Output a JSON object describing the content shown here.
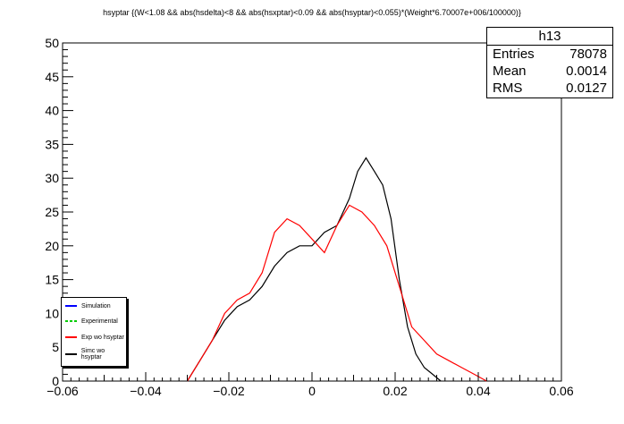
{
  "title": "hsyptar {(W<1.08 && abs(hsdelta)<8 && abs(hsxptar)<0.09 && abs(hsyptar)<0.055)*(Weight*6.70007e+006/100000)}",
  "stats": {
    "name": "h13",
    "rows": [
      {
        "label": "Entries",
        "value": "78078"
      },
      {
        "label": "Mean",
        "value": "0.0014"
      },
      {
        "label": "RMS",
        "value": "0.0127"
      }
    ]
  },
  "legend": [
    {
      "label": "Simulation",
      "color": "#0000ff"
    },
    {
      "label": "Experimental",
      "color": "#00cc00",
      "dashed": true
    },
    {
      "label": "Exp wo hsyptar",
      "color": "#ff0000"
    },
    {
      "label": "Simc wo hsyptar",
      "color": "#000000"
    }
  ],
  "chart_data": {
    "type": "line",
    "xlim": [
      -0.06,
      0.06
    ],
    "ylim": [
      0,
      50
    ],
    "x_ticks": [
      "−0.06",
      "−0.04",
      "−0.02",
      "0",
      "0.02",
      "0.04",
      "0.06"
    ],
    "y_ticks": [
      "0",
      "5",
      "10",
      "15",
      "20",
      "25",
      "30",
      "35",
      "40",
      "45",
      "50"
    ],
    "series": [
      {
        "name": "Simc wo hsyptar",
        "color": "#000000",
        "points": [
          [
            -0.03,
            0
          ],
          [
            -0.027,
            3
          ],
          [
            -0.024,
            6
          ],
          [
            -0.021,
            9
          ],
          [
            -0.018,
            11
          ],
          [
            -0.015,
            12
          ],
          [
            -0.012,
            14
          ],
          [
            -0.009,
            17
          ],
          [
            -0.006,
            19
          ],
          [
            -0.003,
            20
          ],
          [
            0.0,
            20
          ],
          [
            0.003,
            22
          ],
          [
            0.006,
            23
          ],
          [
            0.009,
            27
          ],
          [
            0.011,
            31
          ],
          [
            0.013,
            33
          ],
          [
            0.015,
            31
          ],
          [
            0.017,
            29
          ],
          [
            0.019,
            24
          ],
          [
            0.021,
            15
          ],
          [
            0.023,
            8
          ],
          [
            0.025,
            4
          ],
          [
            0.027,
            2
          ],
          [
            0.029,
            1
          ],
          [
            0.031,
            0
          ]
        ]
      },
      {
        "name": "Exp wo hsyptar",
        "color": "#ff0000",
        "points": [
          [
            -0.03,
            0
          ],
          [
            -0.027,
            3
          ],
          [
            -0.024,
            6
          ],
          [
            -0.021,
            10
          ],
          [
            -0.018,
            12
          ],
          [
            -0.015,
            13
          ],
          [
            -0.012,
            16
          ],
          [
            -0.009,
            22
          ],
          [
            -0.006,
            24
          ],
          [
            -0.003,
            23
          ],
          [
            0.0,
            21
          ],
          [
            0.003,
            19
          ],
          [
            0.006,
            23
          ],
          [
            0.009,
            26
          ],
          [
            0.012,
            25
          ],
          [
            0.015,
            23
          ],
          [
            0.018,
            20
          ],
          [
            0.021,
            14
          ],
          [
            0.024,
            8
          ],
          [
            0.027,
            6
          ],
          [
            0.03,
            4
          ],
          [
            0.033,
            3
          ],
          [
            0.036,
            2
          ],
          [
            0.039,
            1
          ],
          [
            0.042,
            0
          ]
        ]
      }
    ]
  }
}
